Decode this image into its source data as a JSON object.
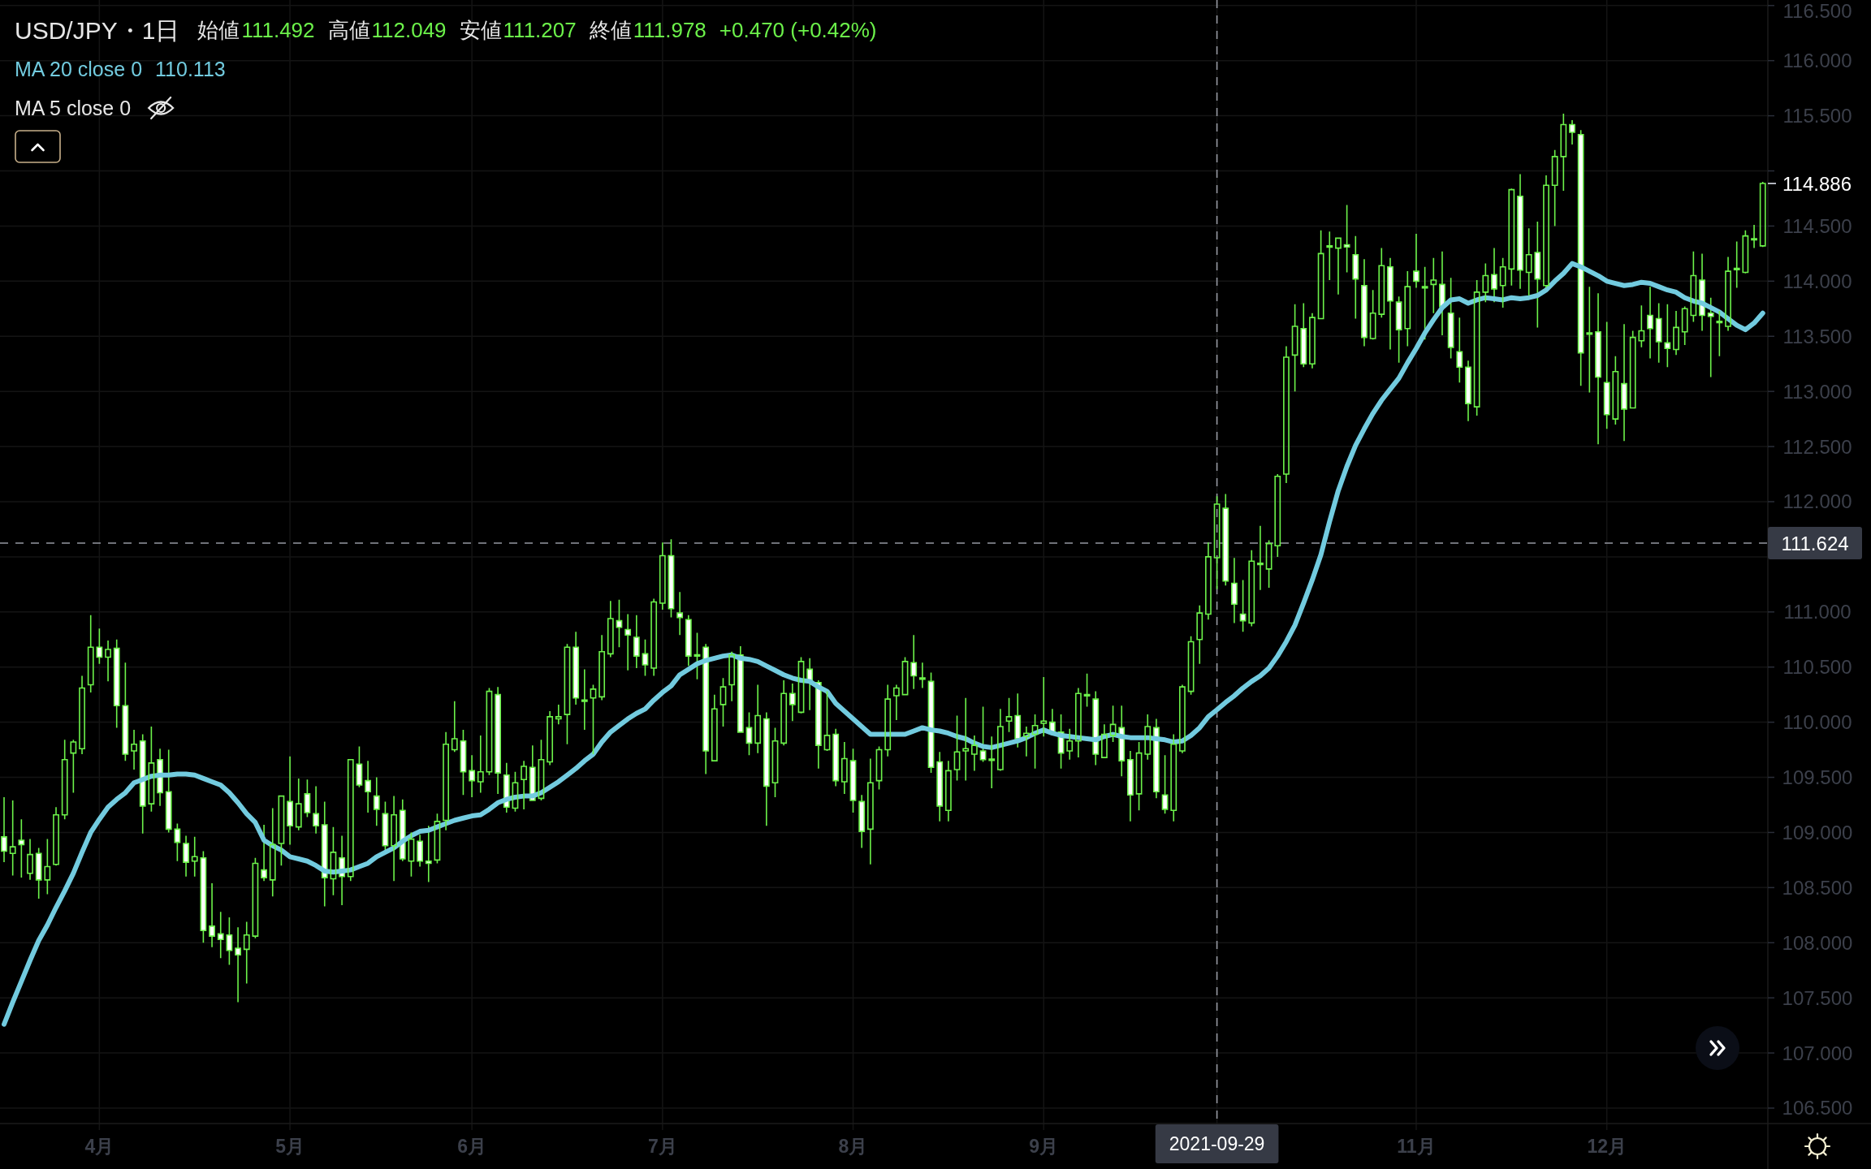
{
  "chart_data": {
    "type": "candlestick",
    "title": "USD/JPY・1日",
    "annotations": [
      "始値",
      "111.492",
      "高値",
      "112.049",
      "安値",
      "111.207",
      "終値",
      "111.978",
      "+0.470 (+0.42%)",
      "110.113",
      "MA 5 close 0",
      "114.886"
    ],
    "color": "#6cf24a",
    "categories": [
      null,
      null,
      null,
      null,
      null,
      null,
      null,
      null,
      null,
      null,
      null,
      "4月",
      null,
      null,
      null,
      null,
      null,
      null,
      null,
      null,
      null,
      null,
      null,
      null,
      null,
      null,
      null,
      null,
      null,
      null,
      null,
      null,
      null,
      "5月",
      null,
      null,
      null,
      null,
      null,
      null,
      null,
      null,
      null,
      null,
      null,
      null,
      null,
      null,
      null,
      null,
      null,
      null,
      null,
      null,
      "6月",
      null,
      null,
      null,
      null,
      null,
      null,
      null,
      null,
      null,
      null,
      null,
      null,
      null,
      null,
      null,
      null,
      null,
      null,
      null,
      null,
      null,
      "7月",
      null,
      null,
      null,
      null,
      null,
      null,
      null,
      null,
      null,
      null,
      null,
      null,
      null,
      null,
      null,
      null,
      null,
      null,
      null,
      null,
      null,
      "8月",
      null,
      null,
      null,
      null,
      null,
      null,
      null,
      null,
      null,
      null,
      null,
      null,
      null,
      null,
      null,
      null,
      null,
      null,
      null,
      null,
      null,
      "9月",
      null,
      null,
      null,
      null,
      null,
      null,
      null,
      null,
      null,
      null,
      null,
      null,
      null,
      null,
      null,
      null,
      null,
      null,
      null,
      "2021-09-29",
      null,
      null,
      null,
      null,
      null,
      null,
      null,
      null,
      null,
      null,
      null,
      null,
      null,
      null,
      null,
      null,
      null,
      null,
      null,
      null,
      null,
      null,
      "11月",
      null,
      null,
      null,
      null,
      null,
      null,
      null,
      null,
      null,
      null,
      null,
      null,
      null,
      null,
      null,
      null,
      null,
      null,
      null,
      null,
      null,
      "12月",
      null,
      null,
      null,
      null,
      null,
      null,
      null,
      null,
      null,
      null,
      null,
      null,
      null,
      null,
      null,
      null,
      null,
      null
    ],
    "ohlc": [
      [
        108.96,
        109.32,
        108.73,
        108.83
      ],
      [
        108.81,
        109.29,
        108.61,
        108.87
      ],
      [
        108.93,
        109.12,
        108.59,
        108.89
      ],
      [
        108.63,
        108.94,
        108.57,
        108.8
      ],
      [
        108.81,
        108.86,
        108.4,
        108.57
      ],
      [
        108.57,
        108.94,
        108.44,
        108.69
      ],
      [
        108.71,
        109.23,
        108.7,
        109.16
      ],
      [
        109.16,
        109.84,
        109.12,
        109.66
      ],
      [
        109.72,
        109.84,
        109.36,
        109.82
      ],
      [
        109.76,
        110.42,
        109.71,
        110.31
      ],
      [
        110.34,
        110.97,
        110.27,
        110.68
      ],
      [
        110.68,
        110.85,
        110.53,
        110.59
      ],
      [
        110.59,
        110.74,
        110.37,
        110.66
      ],
      [
        110.67,
        110.75,
        109.95,
        110.15
      ],
      [
        110.15,
        110.54,
        109.65,
        109.71
      ],
      [
        109.74,
        109.93,
        109.57,
        109.8
      ],
      [
        109.83,
        109.89,
        108.99,
        109.24
      ],
      [
        109.26,
        109.96,
        109.19,
        109.63
      ],
      [
        109.66,
        109.76,
        109.24,
        109.36
      ],
      [
        109.37,
        109.75,
        109,
        109.03
      ],
      [
        109.03,
        109.08,
        108.74,
        108.91
      ],
      [
        108.9,
        108.97,
        108.6,
        108.73
      ],
      [
        108.74,
        108.96,
        108.6,
        108.78
      ],
      [
        108.77,
        108.83,
        108,
        108.11
      ],
      [
        108.15,
        108.54,
        107.96,
        108.06
      ],
      [
        108.08,
        108.28,
        107.86,
        108.03
      ],
      [
        108.07,
        108.23,
        107.8,
        107.93
      ],
      [
        107.95,
        108.14,
        107.46,
        107.89
      ],
      [
        107.94,
        108.19,
        107.63,
        108.07
      ],
      [
        108.06,
        108.77,
        108.04,
        108.72
      ],
      [
        108.66,
        109.07,
        108.56,
        108.59
      ],
      [
        108.57,
        109.22,
        108.42,
        108.89
      ],
      [
        108.9,
        109.33,
        108.7,
        109.33
      ],
      [
        109.28,
        109.69,
        108.89,
        109.06
      ],
      [
        109.05,
        109.49,
        109.02,
        109.26
      ],
      [
        109.35,
        109.48,
        109.14,
        109.18
      ],
      [
        109.17,
        109.42,
        108.99,
        109.06
      ],
      [
        109.07,
        109.28,
        108.33,
        108.59
      ],
      [
        108.58,
        109.05,
        108.43,
        108.82
      ],
      [
        108.77,
        108.97,
        108.34,
        108.6
      ],
      [
        108.6,
        109.66,
        108.56,
        109.66
      ],
      [
        109.62,
        109.78,
        109.41,
        109.43
      ],
      [
        109.47,
        109.65,
        109.18,
        109.37
      ],
      [
        109.33,
        109.5,
        109.06,
        109.21
      ],
      [
        109.17,
        109.28,
        108.83,
        108.88
      ],
      [
        108.88,
        109.33,
        108.56,
        109.16
      ],
      [
        109.2,
        109.3,
        108.74,
        108.76
      ],
      [
        108.74,
        109,
        108.6,
        108.94
      ],
      [
        108.92,
        108.98,
        108.69,
        108.74
      ],
      [
        108.74,
        109.06,
        108.55,
        108.72
      ],
      [
        108.75,
        109.17,
        108.72,
        109.1
      ],
      [
        109.11,
        109.91,
        109.02,
        109.8
      ],
      [
        109.75,
        110.19,
        109.73,
        109.85
      ],
      [
        109.83,
        109.93,
        109.34,
        109.55
      ],
      [
        109.56,
        109.7,
        109.32,
        109.47
      ],
      [
        109.46,
        109.88,
        109.36,
        109.55
      ],
      [
        109.55,
        110.31,
        109.52,
        110.28
      ],
      [
        110.25,
        110.32,
        109.35,
        109.54
      ],
      [
        109.52,
        109.63,
        109.18,
        109.23
      ],
      [
        109.22,
        109.55,
        109.19,
        109.45
      ],
      [
        109.48,
        109.65,
        109.21,
        109.6
      ],
      [
        109.59,
        109.79,
        109.29,
        109.29
      ],
      [
        109.31,
        109.84,
        109.29,
        109.66
      ],
      [
        109.64,
        110.1,
        109.61,
        110.05
      ],
      [
        110.03,
        110.16,
        109.98,
        110.05
      ],
      [
        110.07,
        110.71,
        109.8,
        110.68
      ],
      [
        110.68,
        110.82,
        110.16,
        110.22
      ],
      [
        110.2,
        110.48,
        109.93,
        110.19
      ],
      [
        110.22,
        110.34,
        109.71,
        110.3
      ],
      [
        110.23,
        110.79,
        110.2,
        110.64
      ],
      [
        110.62,
        111.1,
        110.59,
        110.94
      ],
      [
        110.92,
        111.11,
        110.68,
        110.86
      ],
      [
        110.84,
        110.98,
        110.47,
        110.79
      ],
      [
        110.77,
        110.97,
        110.49,
        110.6
      ],
      [
        110.62,
        110.75,
        110.42,
        110.52
      ],
      [
        110.49,
        111.12,
        110.42,
        111.09
      ],
      [
        111.08,
        111.63,
        111.02,
        111.51
      ],
      [
        111.51,
        111.66,
        110.95,
        111.03
      ],
      [
        110.99,
        111.18,
        110.79,
        110.95
      ],
      [
        110.93,
        110.97,
        110.51,
        110.6
      ],
      [
        110.61,
        110.81,
        110.39,
        110.6
      ],
      [
        110.68,
        110.71,
        109.53,
        109.74
      ],
      [
        109.65,
        110.25,
        109.65,
        110.12
      ],
      [
        110.16,
        110.4,
        109.96,
        110.32
      ],
      [
        110.34,
        110.64,
        110.19,
        110.61
      ],
      [
        110.61,
        110.69,
        109.91,
        109.91
      ],
      [
        109.95,
        110.09,
        109.7,
        109.81
      ],
      [
        109.81,
        110.34,
        109.72,
        110.06
      ],
      [
        110.03,
        110.09,
        109.06,
        109.42
      ],
      [
        109.45,
        109.95,
        109.32,
        109.83
      ],
      [
        109.81,
        110.38,
        109.79,
        110.26
      ],
      [
        110.26,
        110.35,
        110.01,
        110.16
      ],
      [
        110.09,
        110.59,
        110.08,
        110.55
      ],
      [
        110.48,
        110.58,
        110.11,
        110.37
      ],
      [
        110.36,
        110.38,
        109.58,
        109.79
      ],
      [
        109.75,
        110.28,
        109.74,
        109.88
      ],
      [
        109.89,
        109.94,
        109.42,
        109.47
      ],
      [
        109.46,
        109.82,
        109.35,
        109.67
      ],
      [
        109.65,
        109.76,
        109.18,
        109.29
      ],
      [
        109.28,
        109.34,
        108.86,
        109.01
      ],
      [
        109.03,
        109.67,
        108.71,
        109.45
      ],
      [
        109.47,
        109.78,
        109.39,
        109.75
      ],
      [
        109.75,
        110.34,
        109.69,
        110.21
      ],
      [
        110.24,
        110.34,
        110.02,
        110.31
      ],
      [
        110.25,
        110.59,
        110.25,
        110.55
      ],
      [
        110.54,
        110.79,
        110.3,
        110.42
      ],
      [
        110.4,
        110.54,
        110.31,
        110.39
      ],
      [
        110.37,
        110.45,
        109.54,
        109.59
      ],
      [
        109.64,
        109.73,
        109.1,
        109.24
      ],
      [
        109.2,
        109.65,
        109.1,
        109.56
      ],
      [
        109.57,
        110.06,
        109.47,
        109.73
      ],
      [
        109.74,
        110.22,
        109.47,
        109.76
      ],
      [
        109.71,
        109.88,
        109.56,
        109.79
      ],
      [
        109.74,
        110.14,
        109.64,
        109.66
      ],
      [
        109.66,
        109.87,
        109.4,
        109.66
      ],
      [
        109.57,
        110.12,
        109.56,
        109.96
      ],
      [
        110.01,
        110.22,
        109.91,
        110.05
      ],
      [
        110.06,
        110.26,
        109.77,
        109.85
      ],
      [
        109.87,
        109.96,
        109.69,
        109.9
      ],
      [
        109.89,
        110.07,
        109.58,
        109.97
      ],
      [
        109.99,
        110.41,
        109.87,
        110.01
      ],
      [
        110,
        110.12,
        109.91,
        109.91
      ],
      [
        109.91,
        110.07,
        109.58,
        109.72
      ],
      [
        109.74,
        109.94,
        109.66,
        109.83
      ],
      [
        109.83,
        110.31,
        109.68,
        110.26
      ],
      [
        110.25,
        110.44,
        110.14,
        110.24
      ],
      [
        110.21,
        110.28,
        109.61,
        109.71
      ],
      [
        109.68,
        109.98,
        109.68,
        109.89
      ],
      [
        109.88,
        110.15,
        109.82,
        109.98
      ],
      [
        109.95,
        110.15,
        109.51,
        109.65
      ],
      [
        109.66,
        109.74,
        109.1,
        109.34
      ],
      [
        109.35,
        109.82,
        109.2,
        109.72
      ],
      [
        109.71,
        110.07,
        109.66,
        109.96
      ],
      [
        109.95,
        110.03,
        109.31,
        109.37
      ],
      [
        109.34,
        109.7,
        109.17,
        109.21
      ],
      [
        109.2,
        109.89,
        109.1,
        109.8
      ],
      [
        109.74,
        110.34,
        109.72,
        110.32
      ],
      [
        110.28,
        110.78,
        110.25,
        110.73
      ],
      [
        110.75,
        111.06,
        110.53,
        110.99
      ],
      [
        110.98,
        111.63,
        110.93,
        111.5
      ],
      [
        111.492,
        112.049,
        111.207,
        111.978
      ],
      [
        111.94,
        112.07,
        111.24,
        111.28
      ],
      [
        111.26,
        111.49,
        110.9,
        111.07
      ],
      [
        110.98,
        111.29,
        110.82,
        110.92
      ],
      [
        110.9,
        111.56,
        110.87,
        111.46
      ],
      [
        111.44,
        111.78,
        111.2,
        111.43
      ],
      [
        111.39,
        111.65,
        111.22,
        111.62
      ],
      [
        111.6,
        112.25,
        111.5,
        112.23
      ],
      [
        112.25,
        113.41,
        112.17,
        113.31
      ],
      [
        113.33,
        113.79,
        113,
        113.59
      ],
      [
        113.57,
        113.8,
        113.22,
        113.25
      ],
      [
        113.25,
        113.71,
        113.21,
        113.67
      ],
      [
        113.66,
        114.46,
        113.66,
        114.25
      ],
      [
        114.32,
        114.45,
        114.01,
        114.31
      ],
      [
        114.3,
        114.39,
        113.88,
        114.39
      ],
      [
        114.33,
        114.69,
        114.08,
        114.31
      ],
      [
        114.24,
        114.41,
        113.66,
        114.02
      ],
      [
        113.96,
        114.2,
        113.41,
        113.49
      ],
      [
        113.48,
        113.92,
        113.47,
        113.71
      ],
      [
        113.7,
        114.3,
        113.67,
        114.14
      ],
      [
        114.13,
        114.21,
        113.38,
        113.82
      ],
      [
        113.81,
        113.86,
        113.26,
        113.56
      ],
      [
        113.57,
        114.09,
        113.41,
        113.95
      ],
      [
        114.09,
        114.43,
        113.94,
        114
      ],
      [
        113.95,
        114.13,
        113.47,
        113.94
      ],
      [
        113.97,
        114.21,
        113.71,
        114.01
      ],
      [
        113.97,
        114.27,
        113.51,
        113.77
      ],
      [
        113.71,
        114.03,
        113.3,
        113.4
      ],
      [
        113.36,
        113.67,
        113.08,
        113.22
      ],
      [
        113.22,
        113.28,
        112.73,
        112.89
      ],
      [
        112.86,
        114.01,
        112.78,
        113.9
      ],
      [
        113.9,
        114.16,
        113.81,
        114.05
      ],
      [
        114.06,
        114.3,
        113.81,
        113.93
      ],
      [
        113.96,
        114.21,
        113.76,
        114.13
      ],
      [
        114.11,
        114.84,
        113.96,
        114.83
      ],
      [
        114.77,
        114.97,
        113.93,
        114.1
      ],
      [
        114.08,
        114.48,
        113.87,
        114.24
      ],
      [
        114.26,
        114.54,
        113.58,
        114.02
      ],
      [
        113.96,
        114.96,
        113.94,
        114.87
      ],
      [
        114.87,
        115.19,
        114.5,
        115.13
      ],
      [
        115.13,
        115.52,
        114.82,
        115.42
      ],
      [
        115.42,
        115.46,
        115.24,
        115.35
      ],
      [
        115.33,
        115.37,
        113.05,
        113.35
      ],
      [
        113.53,
        113.95,
        112.99,
        113.52
      ],
      [
        113.54,
        113.89,
        112.52,
        113.13
      ],
      [
        113.08,
        113.63,
        112.66,
        112.79
      ],
      [
        112.75,
        113.32,
        112.7,
        113.18
      ],
      [
        113.07,
        113.61,
        112.55,
        112.84
      ],
      [
        112.85,
        113.55,
        112.85,
        113.49
      ],
      [
        113.46,
        113.78,
        113.4,
        113.55
      ],
      [
        113.69,
        113.95,
        113.3,
        113.57
      ],
      [
        113.66,
        113.8,
        113.26,
        113.45
      ],
      [
        113.44,
        113.79,
        113.22,
        113.39
      ],
      [
        113.38,
        113.73,
        113.33,
        113.58
      ],
      [
        113.54,
        113.77,
        113.42,
        113.75
      ],
      [
        113.69,
        114.27,
        113.63,
        114.05
      ],
      [
        114.01,
        114.25,
        113.55,
        113.69
      ],
      [
        113.71,
        113.85,
        113.13,
        113.68
      ],
      [
        113.63,
        113.73,
        113.32,
        113.63
      ],
      [
        113.59,
        114.22,
        113.55,
        114.09
      ],
      [
        114.11,
        114.36,
        113.94,
        114.11
      ],
      [
        114.08,
        114.46,
        114.07,
        114.41
      ],
      [
        114.38,
        114.51,
        114.3,
        114.38
      ],
      [
        114.32,
        114.9,
        114.31,
        114.886
      ]
    ],
    "series": [
      {
        "name": "MA 20 close 0",
        "type": "line",
        "color": "#72cbdf",
        "values": [
          107.26,
          107.46,
          107.65,
          107.84,
          108.02,
          108.16,
          108.32,
          108.47,
          108.63,
          108.82,
          109.0,
          109.12,
          109.23,
          109.3,
          109.36,
          109.45,
          109.48,
          109.51,
          109.52,
          109.52,
          109.53,
          109.53,
          109.52,
          109.49,
          109.46,
          109.43,
          109.36,
          109.27,
          109.17,
          109.09,
          108.93,
          108.88,
          108.84,
          108.78,
          108.76,
          108.74,
          108.7,
          108.65,
          108.64,
          108.65,
          108.66,
          108.69,
          108.72,
          108.78,
          108.82,
          108.86,
          108.92,
          108.97,
          109.01,
          109.02,
          109.05,
          109.08,
          109.11,
          109.13,
          109.15,
          109.16,
          109.21,
          109.27,
          109.3,
          109.32,
          109.33,
          109.33,
          109.36,
          109.41,
          109.46,
          109.52,
          109.58,
          109.65,
          109.71,
          109.82,
          109.91,
          109.97,
          110.03,
          110.08,
          110.12,
          110.2,
          110.27,
          110.33,
          110.43,
          110.48,
          110.53,
          110.56,
          110.58,
          110.6,
          110.61,
          110.58,
          110.57,
          110.55,
          110.51,
          110.47,
          110.43,
          110.4,
          110.38,
          110.37,
          110.32,
          110.28,
          110.17,
          110.1,
          110.03,
          109.96,
          109.89,
          109.89,
          109.89,
          109.89,
          109.89,
          109.92,
          109.95,
          109.93,
          109.92,
          109.9,
          109.87,
          109.85,
          109.81,
          109.78,
          109.77,
          109.79,
          109.81,
          109.83,
          109.86,
          109.9,
          109.93,
          109.9,
          109.88,
          109.87,
          109.86,
          109.85,
          109.84,
          109.87,
          109.89,
          109.87,
          109.86,
          109.86,
          109.86,
          109.85,
          109.84,
          109.82,
          109.83,
          109.88,
          109.95,
          110.05,
          110.113,
          110.18,
          110.24,
          110.31,
          110.37,
          110.42,
          110.49,
          110.6,
          110.73,
          110.88,
          111.08,
          111.29,
          111.52,
          111.82,
          112.1,
          112.32,
          112.51,
          112.66,
          112.8,
          112.92,
          113.02,
          113.12,
          113.26,
          113.39,
          113.53,
          113.65,
          113.76,
          113.83,
          113.84,
          113.8,
          113.83,
          113.85,
          113.84,
          113.83,
          113.85,
          113.84,
          113.85,
          113.87,
          113.92,
          114.0,
          114.07,
          114.16,
          114.13,
          114.09,
          114.05,
          114.0,
          113.98,
          113.96,
          113.97,
          113.99,
          113.98,
          113.95,
          113.92,
          113.9,
          113.85,
          113.82,
          113.8,
          113.76,
          113.72,
          113.66,
          113.6,
          113.56,
          113.62,
          113.71
        ]
      }
    ],
    "ylim": [
      106.36,
      116.55
    ],
    "yticks": [
      {
        "value": 116.5,
        "label": "116.500"
      },
      {
        "value": 116,
        "label": "116.000"
      },
      {
        "value": 115.5,
        "label": "115.500"
      },
      {
        "value": 115,
        "label": null
      },
      {
        "value": 114.5,
        "label": "114.500"
      },
      {
        "value": 114,
        "label": "114.000"
      },
      {
        "value": 113.5,
        "label": "113.500"
      },
      {
        "value": 113,
        "label": "113.000"
      },
      {
        "value": 112.5,
        "label": "112.500"
      },
      {
        "value": 112,
        "label": "112.000"
      },
      {
        "value": 111.5,
        "label": null
      },
      {
        "value": 111,
        "label": "111.000"
      },
      {
        "value": 110.5,
        "label": "110.500"
      },
      {
        "value": 110,
        "label": "110.000"
      },
      {
        "value": 109.5,
        "label": "109.500"
      },
      {
        "value": 109,
        "label": "109.000"
      },
      {
        "value": 108.5,
        "label": "108.500"
      },
      {
        "value": 108,
        "label": "108.000"
      },
      {
        "value": 107.5,
        "label": "107.500"
      },
      {
        "value": 107,
        "label": "107.000"
      },
      {
        "value": 106.5,
        "label": "106.500"
      }
    ],
    "grid": true,
    "legend": "top left",
    "ref_lines": [
      {
        "axis": "x",
        "value": "2021-09-29",
        "color": "#9598a1",
        "line_style": "dashed"
      },
      {
        "axis": "y",
        "value": 111.624,
        "label": "111.624",
        "color": "#9598a1",
        "line_style": "dashed"
      }
    ]
  }
}
